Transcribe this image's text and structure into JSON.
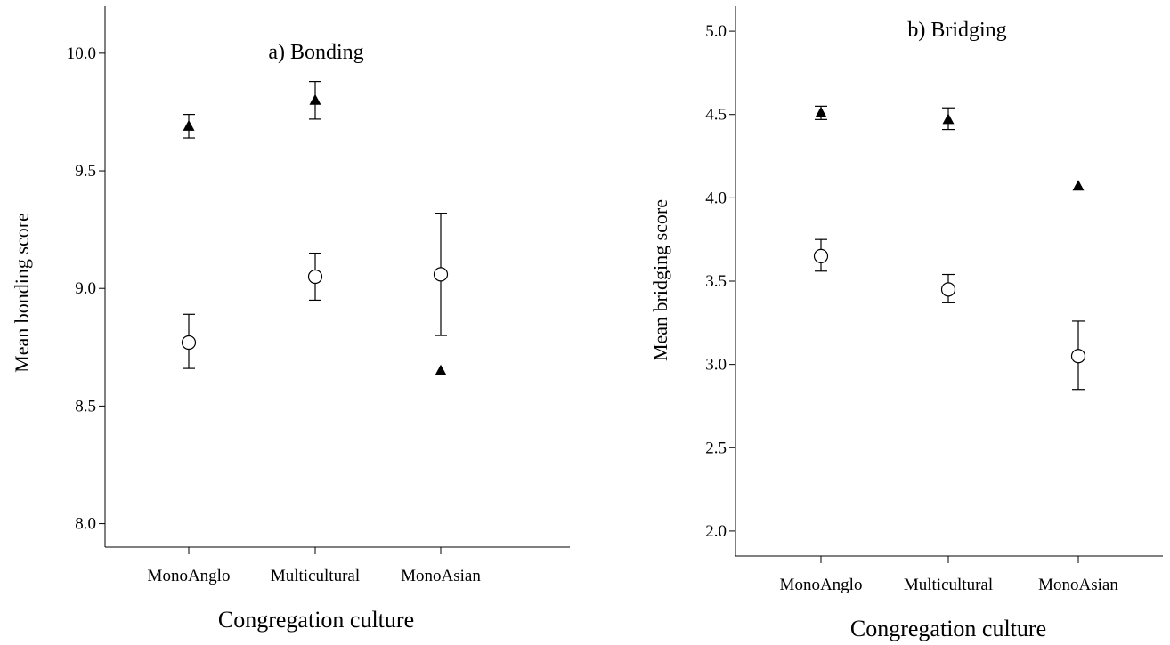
{
  "chart_data": [
    {
      "type": "scatter",
      "title": "a) Bonding",
      "xlabel": "Congregation culture",
      "ylabel": "Mean bonding score",
      "categories": [
        "MonoAnglo",
        "Multicultural",
        "MonoAsian"
      ],
      "ylim": [
        7.9,
        10.2
      ],
      "yticks": [
        "8.0",
        "8.5",
        "9.0",
        "9.5",
        "10.0"
      ],
      "ytick_values": [
        8.0,
        8.5,
        9.0,
        9.5,
        10.0
      ],
      "grid": false,
      "series": [
        {
          "marker": "triangle",
          "values": [
            9.69,
            9.8,
            8.65
          ],
          "lower": [
            9.64,
            9.72,
            null
          ],
          "upper": [
            9.74,
            9.88,
            null
          ]
        },
        {
          "marker": "circle",
          "values": [
            8.77,
            9.05,
            9.06
          ],
          "lower": [
            8.66,
            8.95,
            8.8
          ],
          "upper": [
            8.89,
            9.15,
            9.32
          ]
        }
      ]
    },
    {
      "type": "scatter",
      "title": "b) Bridging",
      "xlabel": "Congregation culture",
      "ylabel": "Mean bridging score",
      "categories": [
        "MonoAnglo",
        "Multicultural",
        "MonoAsian"
      ],
      "ylim": [
        1.85,
        5.15
      ],
      "yticks": [
        "2.0",
        "2.5",
        "3.0",
        "3.5",
        "4.0",
        "4.5",
        "5.0"
      ],
      "ytick_values": [
        2.0,
        2.5,
        3.0,
        3.5,
        4.0,
        4.5,
        5.0
      ],
      "grid": false,
      "series": [
        {
          "marker": "triangle",
          "values": [
            4.51,
            4.47,
            4.07
          ],
          "lower": [
            4.47,
            4.41,
            null
          ],
          "upper": [
            4.55,
            4.54,
            null
          ]
        },
        {
          "marker": "circle",
          "values": [
            3.65,
            3.45,
            3.05
          ],
          "lower": [
            3.56,
            3.37,
            2.85
          ],
          "upper": [
            3.75,
            3.54,
            3.26
          ]
        }
      ]
    }
  ]
}
